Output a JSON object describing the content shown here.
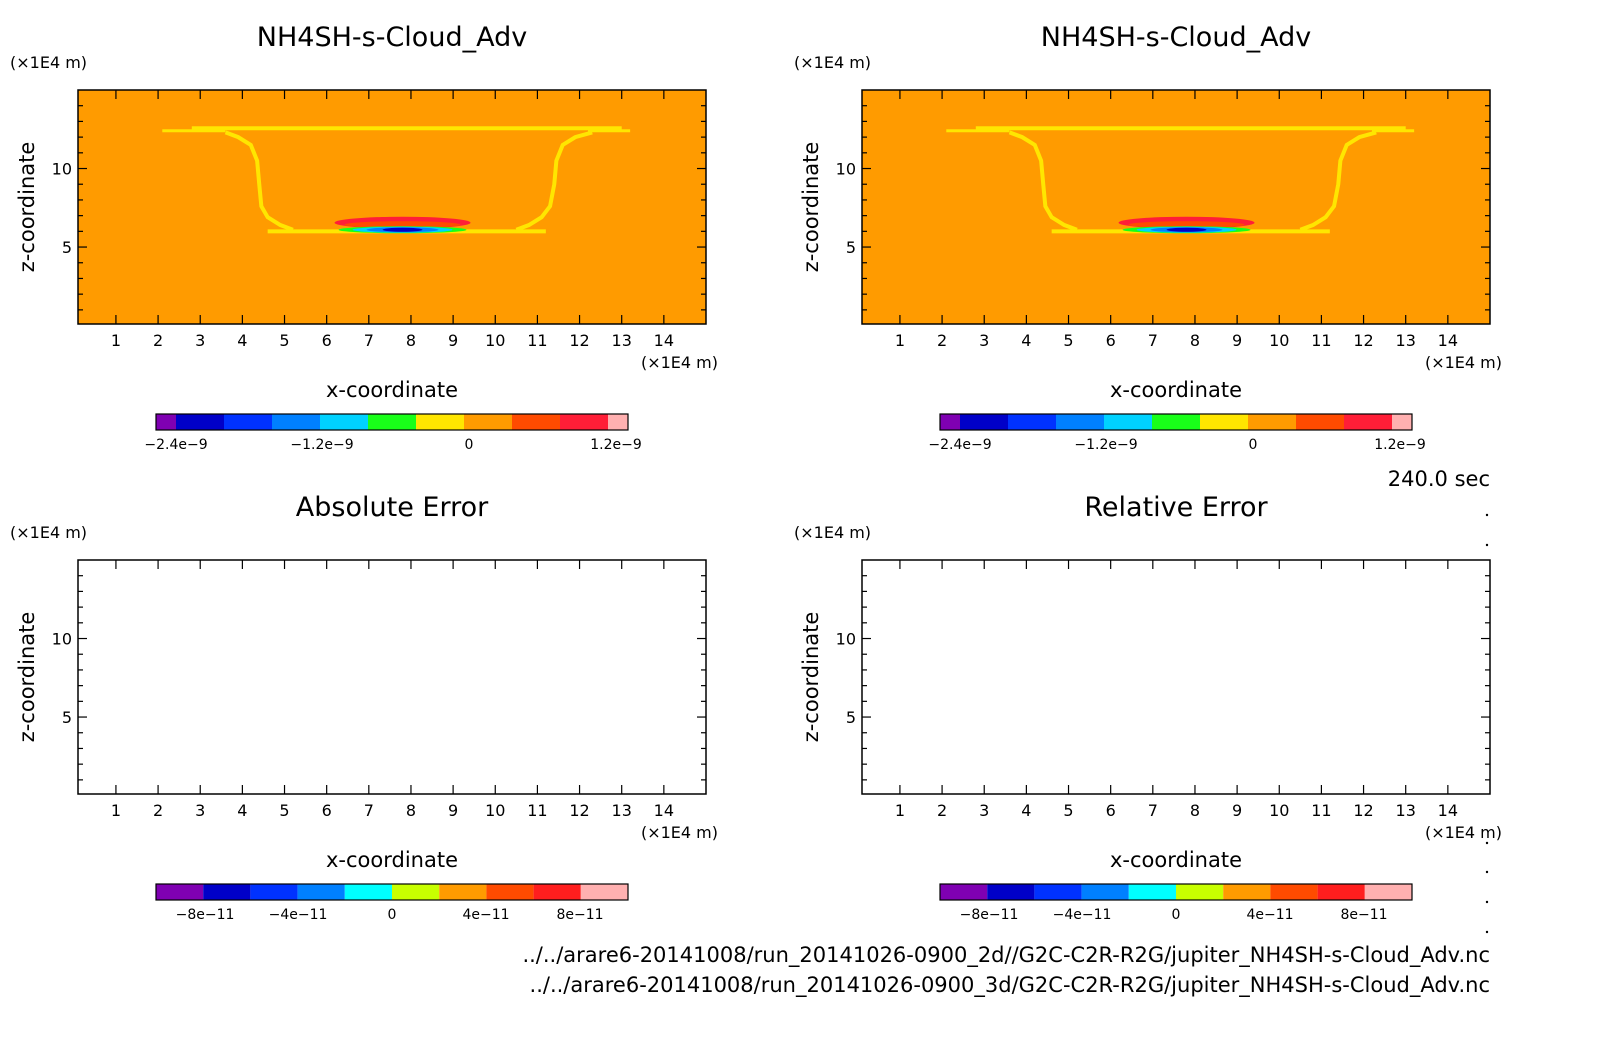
{
  "time_label": "240.0 sec",
  "files": [
    "../../arare6-20141008/run_20141026-0900_2d//G2C-C2R-R2G/jupiter_NH4SH-s-Cloud_Adv.nc",
    "../../arare6-20141008/run_20141026-0900_3d/G2C-C2R-R2G/jupiter_NH4SH-s-Cloud_Adv.nc"
  ],
  "chart_data": [
    {
      "type": "heatmap",
      "title": "NH4SH-s-Cloud_Adv",
      "xlabel": "x-coordinate",
      "ylabel": "z-coordinate",
      "x_unit": "(×1E4 m)",
      "y_unit": "(×1E4 m)",
      "xlim": [
        0.1,
        15.0
      ],
      "ylim": [
        0.1,
        15.0
      ],
      "x_ticks": [
        "1",
        "2",
        "3",
        "4",
        "5",
        "6",
        "7",
        "8",
        "9",
        "10",
        "11",
        "12",
        "13",
        "14"
      ],
      "y_ticks": [
        "5",
        "10"
      ],
      "colorbar_ticks": [
        "-2.4e-9",
        "-1.2e-9",
        "0",
        "1.2e-9"
      ],
      "colorbar_colors": [
        "#7f00b2",
        "#0000c8",
        "#0032ff",
        "#0080ff",
        "#00d2ff",
        "#19ff19",
        "#ffe600",
        "#ff9b00",
        "#ff4b00",
        "#ff1e37",
        "#ffb0b0"
      ],
      "background_color": "#ff9b00"
    },
    {
      "type": "heatmap",
      "title": "NH4SH-s-Cloud_Adv",
      "xlabel": "x-coordinate",
      "ylabel": "z-coordinate",
      "x_unit": "(×1E4 m)",
      "y_unit": "(×1E4 m)",
      "xlim": [
        0.1,
        15.0
      ],
      "ylim": [
        0.1,
        15.0
      ],
      "x_ticks": [
        "1",
        "2",
        "3",
        "4",
        "5",
        "6",
        "7",
        "8",
        "9",
        "10",
        "11",
        "12",
        "13",
        "14"
      ],
      "y_ticks": [
        "5",
        "10"
      ],
      "colorbar_ticks": [
        "-2.4e-9",
        "-1.2e-9",
        "0",
        "1.2e-9"
      ],
      "colorbar_colors": [
        "#7f00b2",
        "#0000c8",
        "#0032ff",
        "#0080ff",
        "#00d2ff",
        "#19ff19",
        "#ffe600",
        "#ff9b00",
        "#ff4b00",
        "#ff1e37",
        "#ffb0b0"
      ],
      "background_color": "#ff9b00"
    },
    {
      "type": "heatmap",
      "title": "Absolute Error",
      "xlabel": "x-coordinate",
      "ylabel": "z-coordinate",
      "x_unit": "(×1E4 m)",
      "y_unit": "(×1E4 m)",
      "xlim": [
        0.1,
        15.0
      ],
      "ylim": [
        0.1,
        15.0
      ],
      "x_ticks": [
        "1",
        "2",
        "3",
        "4",
        "5",
        "6",
        "7",
        "8",
        "9",
        "10",
        "11",
        "12",
        "13",
        "14"
      ],
      "y_ticks": [
        "5",
        "10"
      ],
      "colorbar_ticks": [
        "-8e-11",
        "-4e-11",
        "0",
        "4e-11",
        "8e-11"
      ],
      "colorbar_colors": [
        "#7f00b2",
        "#0000c8",
        "#0032ff",
        "#0080ff",
        "#00ffff",
        "#c8ff00",
        "#ff9b00",
        "#ff4b00",
        "#ff1e1e",
        "#ffb0b0"
      ],
      "background_color": "#ffffff"
    },
    {
      "type": "heatmap",
      "title": "Relative Error",
      "xlabel": "x-coordinate",
      "ylabel": "z-coordinate",
      "x_unit": "(×1E4 m)",
      "y_unit": "(×1E4 m)",
      "xlim": [
        0.1,
        15.0
      ],
      "ylim": [
        0.1,
        15.0
      ],
      "x_ticks": [
        "1",
        "2",
        "3",
        "4",
        "5",
        "6",
        "7",
        "8",
        "9",
        "10",
        "11",
        "12",
        "13",
        "14"
      ],
      "y_ticks": [
        "5",
        "10"
      ],
      "colorbar_ticks": [
        "-8e-11",
        "-4e-11",
        "0",
        "4e-11",
        "8e-11"
      ],
      "colorbar_colors": [
        "#7f00b2",
        "#0000c8",
        "#0032ff",
        "#0080ff",
        "#00ffff",
        "#c8ff00",
        "#ff9b00",
        "#ff4b00",
        "#ff1e1e",
        "#ffb0b0"
      ],
      "background_color": "#ffffff"
    }
  ]
}
